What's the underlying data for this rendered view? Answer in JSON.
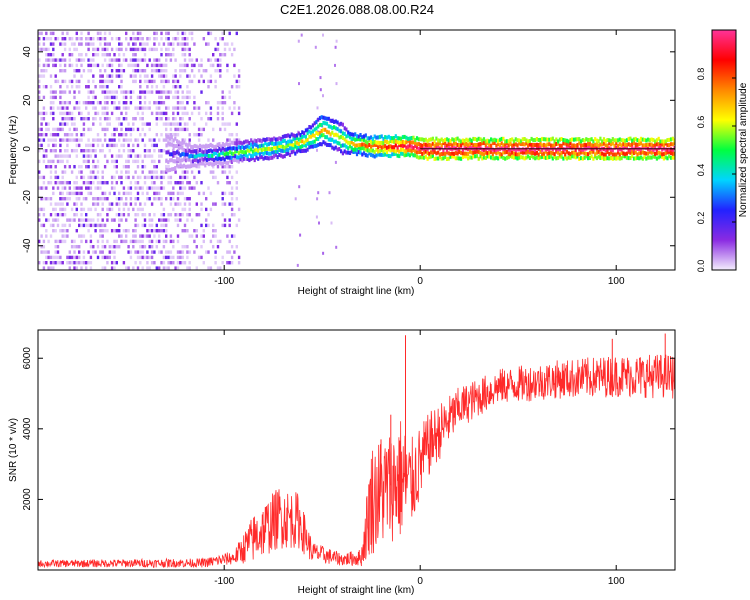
{
  "title": "C2E1.2026.088.08.00.R24",
  "chart_data": [
    {
      "type": "heatmap",
      "xlabel": "Height of straight line (km)",
      "ylabel": "Frequency (Hz)",
      "xlim": [
        -195,
        130
      ],
      "ylim": [
        -50,
        49
      ],
      "xticks": [
        -100,
        0,
        100
      ],
      "yticks": [
        -40,
        -20,
        0,
        20,
        40
      ],
      "grid": false,
      "colorbar": {
        "label": "Normalized spectral amplitude",
        "range": [
          0,
          1
        ],
        "ticks": [
          "0.0",
          "0.2",
          "0.4",
          "0.6",
          "0.8"
        ],
        "colors": [
          "#f4eefd",
          "#8a2be2",
          "#2222ff",
          "#00d5ff",
          "#00ff40",
          "#ffff00",
          "#ff8800",
          "#ff0000",
          "#ff3399"
        ]
      },
      "ridge": [
        {
          "x": -195,
          "f": 0,
          "amp": 0.18,
          "width": 10
        },
        {
          "x": -150,
          "f": 0,
          "amp": 0.22,
          "width": 8
        },
        {
          "x": -125,
          "f": -2,
          "amp": 0.2,
          "width": 3
        },
        {
          "x": -115,
          "f": -3,
          "amp": 0.35,
          "width": 2
        },
        {
          "x": -100,
          "f": -2,
          "amp": 0.45,
          "width": 2
        },
        {
          "x": -90,
          "f": -1,
          "amp": 0.55,
          "width": 2
        },
        {
          "x": -80,
          "f": 0,
          "amp": 0.6,
          "width": 2
        },
        {
          "x": -70,
          "f": 1,
          "amp": 0.6,
          "width": 2
        },
        {
          "x": -60,
          "f": 3,
          "amp": 0.65,
          "width": 2
        },
        {
          "x": -50,
          "f": 8,
          "amp": 0.7,
          "width": 3
        },
        {
          "x": -45,
          "f": 6,
          "amp": 0.65,
          "width": 3
        },
        {
          "x": -40,
          "f": 4,
          "amp": 0.6,
          "width": 3
        },
        {
          "x": -35,
          "f": 2,
          "amp": 0.7,
          "width": 2
        },
        {
          "x": -25,
          "f": 1,
          "amp": 0.8,
          "width": 2
        },
        {
          "x": -15,
          "f": 1,
          "amp": 0.85,
          "width": 2
        },
        {
          "x": -5,
          "f": 1,
          "amp": 0.95,
          "width": 2
        },
        {
          "x": 0,
          "f": 0,
          "amp": 1.0,
          "width": 2
        },
        {
          "x": 130,
          "f": 0,
          "amp": 1.0,
          "width": 2
        }
      ]
    },
    {
      "type": "line",
      "xlabel": "Height of straight line (km)",
      "ylabel": "SNR (10 * v/v)",
      "xlim": [
        -195,
        130
      ],
      "ylim": [
        0,
        6800
      ],
      "xticks": [
        -100,
        0,
        100
      ],
      "yticks": [
        2000,
        4000,
        6000
      ],
      "grid": false,
      "color": "#ff2a2a",
      "envelope": [
        {
          "x": -195,
          "mean": 180,
          "noise": 100
        },
        {
          "x": -110,
          "mean": 200,
          "noise": 130
        },
        {
          "x": -95,
          "mean": 350,
          "noise": 200
        },
        {
          "x": -85,
          "mean": 900,
          "noise": 700
        },
        {
          "x": -72,
          "mean": 1500,
          "noise": 900
        },
        {
          "x": -62,
          "mean": 1400,
          "noise": 800
        },
        {
          "x": -55,
          "mean": 500,
          "noise": 300
        },
        {
          "x": -40,
          "mean": 300,
          "noise": 180
        },
        {
          "x": -30,
          "mean": 350,
          "noise": 250
        },
        {
          "x": -25,
          "mean": 2000,
          "noise": 1600
        },
        {
          "x": -15,
          "mean": 2400,
          "noise": 1600
        },
        {
          "x": -10,
          "mean": 2600,
          "noise": 1800
        },
        {
          "x": -5,
          "mean": 2400,
          "noise": 1300
        },
        {
          "x": 5,
          "mean": 3600,
          "noise": 900
        },
        {
          "x": 20,
          "mean": 4600,
          "noise": 600
        },
        {
          "x": 40,
          "mean": 5200,
          "noise": 500
        },
        {
          "x": 70,
          "mean": 5400,
          "noise": 550
        },
        {
          "x": 100,
          "mean": 5500,
          "noise": 600
        },
        {
          "x": 130,
          "mean": 5500,
          "noise": 650
        }
      ],
      "spikes": [
        {
          "x": -7.5,
          "y": 6650
        },
        {
          "x": -15,
          "y": 4400
        },
        {
          "x": -20,
          "y": 3700
        },
        {
          "x": 98,
          "y": 6550
        },
        {
          "x": 125,
          "y": 6700
        }
      ]
    }
  ]
}
